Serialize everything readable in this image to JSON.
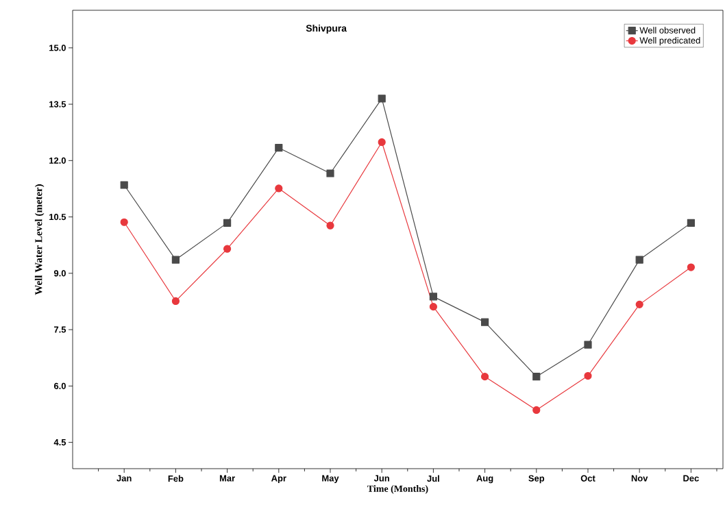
{
  "chart_data": {
    "type": "line",
    "title": "Shivpura",
    "xlabel": "Time (Months)",
    "ylabel": "Well Water Level (meter)",
    "categories": [
      "Jan",
      "Feb",
      "Mar",
      "Apr",
      "May",
      "Jun",
      "Jul",
      "Aug",
      "Sep",
      "Oct",
      "Nov",
      "Dec"
    ],
    "series": [
      {
        "name": "Well observed",
        "color": "#4a4a4a",
        "marker": "square",
        "values": [
          11.35,
          9.36,
          10.34,
          12.34,
          11.66,
          13.65,
          8.38,
          7.7,
          6.25,
          7.1,
          9.36,
          10.34
        ]
      },
      {
        "name": "Well predicated",
        "color": "#e8383d",
        "marker": "circle",
        "values": [
          10.36,
          8.26,
          9.65,
          11.26,
          10.27,
          12.49,
          8.11,
          6.25,
          5.36,
          6.27,
          8.17,
          9.16
        ]
      }
    ],
    "ylim": [
      3.8,
      16
    ],
    "yticks": [
      {
        "value": 4.5,
        "label": "4.5"
      },
      {
        "value": 6.0,
        "label": "6.0"
      },
      {
        "value": 7.5,
        "label": "7.5"
      },
      {
        "value": 9.0,
        "label": "9.0"
      },
      {
        "value": 10.5,
        "label": "10.5"
      },
      {
        "value": 12.0,
        "label": "12.0"
      },
      {
        "value": 13.5,
        "label": "13.5"
      },
      {
        "value": 15.0,
        "label": "15.0"
      }
    ],
    "grid": false,
    "legend": "top right",
    "line_style": "solid"
  }
}
